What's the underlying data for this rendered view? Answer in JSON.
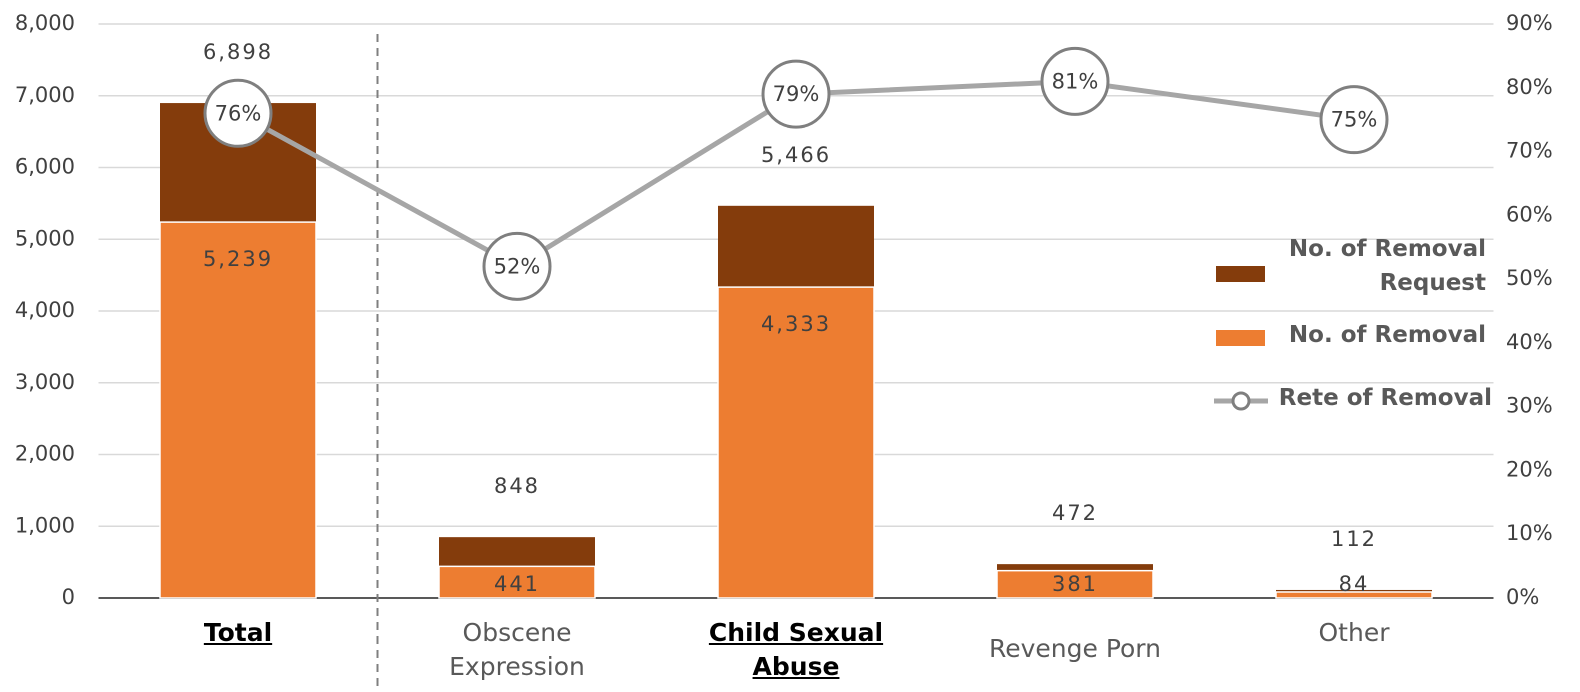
{
  "chart_data": {
    "type": "bar",
    "categories": [
      "Total",
      "Obscene Expression",
      "Child Sexual Abuse",
      "Revenge Porn",
      "Other"
    ],
    "bold_categories": [
      true,
      false,
      true,
      false,
      false
    ],
    "series": [
      {
        "name": "No. of Removal Request",
        "color": "#843c0c",
        "type": "bar",
        "values": [
          6898,
          848,
          5466,
          472,
          112
        ],
        "value_labels": [
          "6,898",
          "848",
          "5,466",
          "472",
          "112"
        ]
      },
      {
        "name": "No. of Removal",
        "color": "#ed7d31",
        "type": "bar",
        "values": [
          5239,
          441,
          4333,
          381,
          84
        ],
        "value_labels": [
          "5,239",
          "441",
          "4,333",
          "381",
          "84"
        ]
      },
      {
        "name": "Rete of Removal",
        "color": "#a6a6a6",
        "type": "line",
        "axis": "y2",
        "values": [
          76,
          52,
          79,
          81,
          75
        ],
        "value_labels": [
          "76%",
          "52%",
          "79%",
          "81%",
          "75%"
        ]
      }
    ],
    "ylim": [
      0,
      8000
    ],
    "yticks": [
      0,
      {
        "value": 1000,
        "label": "1,000"
      },
      {
        "value": 2000,
        "label": "2,000"
      },
      {
        "value": 3000,
        "label": "3,000"
      },
      {
        "value": 4000,
        "label": "4,000"
      },
      {
        "value": 5000,
        "label": "5,000"
      },
      {
        "value": 6000,
        "label": "6,000"
      },
      {
        "value": 7000,
        "label": "7,000"
      },
      {
        "value": 8000,
        "label": "8,000"
      }
    ],
    "y2lim": [
      0,
      90
    ],
    "y2ticks": [
      {
        "value": 0,
        "label": "0%"
      },
      {
        "value": 10,
        "label": "10%"
      },
      {
        "value": 20,
        "label": "20%"
      },
      {
        "value": 30,
        "label": "30%"
      },
      {
        "value": 40,
        "label": "40%"
      },
      {
        "value": 50,
        "label": "50%"
      },
      {
        "value": 60,
        "label": "60%"
      },
      {
        "value": 70,
        "label": "70%"
      },
      {
        "value": 80,
        "label": "80%"
      },
      {
        "value": 90,
        "label": "90%"
      }
    ],
    "grid": true,
    "legend": "right"
  }
}
